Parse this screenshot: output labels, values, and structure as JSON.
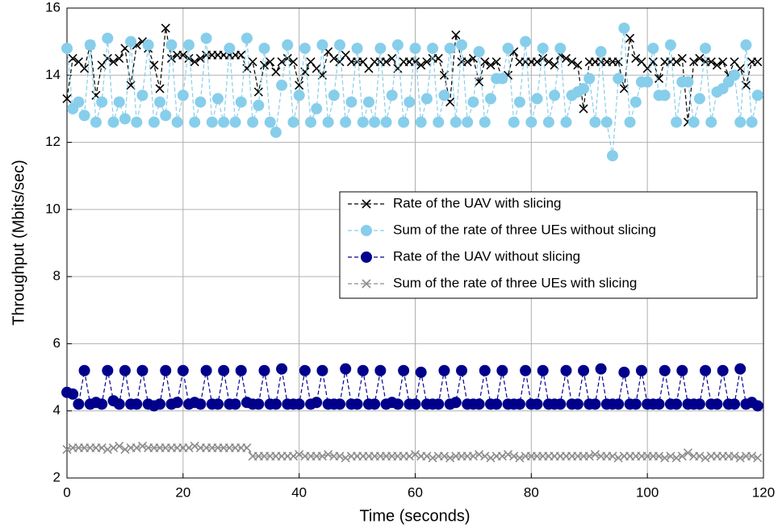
{
  "chart_data": {
    "type": "line",
    "x_label": "Time (seconds)",
    "y_label": "Throughput (Mbits/sec)",
    "x": [
      0,
      1,
      2,
      3,
      4,
      5,
      6,
      7,
      8,
      9,
      10,
      11,
      12,
      13,
      14,
      15,
      16,
      17,
      18,
      19,
      20,
      21,
      22,
      23,
      24,
      25,
      26,
      27,
      28,
      29,
      30,
      31,
      32,
      33,
      34,
      35,
      36,
      37,
      38,
      39,
      40,
      41,
      42,
      43,
      44,
      45,
      46,
      47,
      48,
      49,
      50,
      51,
      52,
      53,
      54,
      55,
      56,
      57,
      58,
      59,
      60,
      61,
      62,
      63,
      64,
      65,
      66,
      67,
      68,
      69,
      70,
      71,
      72,
      73,
      74,
      75,
      76,
      77,
      78,
      79,
      80,
      81,
      82,
      83,
      84,
      85,
      86,
      87,
      88,
      89,
      90,
      91,
      92,
      93,
      94,
      95,
      96,
      97,
      98,
      99,
      100,
      101,
      102,
      103,
      104,
      105,
      106,
      107,
      108,
      109,
      110,
      111,
      112,
      113,
      114,
      115,
      116,
      117,
      118,
      119
    ],
    "series": [
      {
        "name": "Rate of the UAV with slicing",
        "color": "#000000",
        "marker": "x",
        "values": [
          13.3,
          14.5,
          14.4,
          14.2,
          14.9,
          13.4,
          14.3,
          14.5,
          14.4,
          14.5,
          14.8,
          13.7,
          14.9,
          15.0,
          14.8,
          14.3,
          13.6,
          15.4,
          14.5,
          14.6,
          14.6,
          14.5,
          14.4,
          14.5,
          14.6,
          14.6,
          14.6,
          14.6,
          14.6,
          14.6,
          14.6,
          14.2,
          14.4,
          13.5,
          14.3,
          14.4,
          14.1,
          14.4,
          14.5,
          14.4,
          13.7,
          14.1,
          14.4,
          14.2,
          14.0,
          14.7,
          14.5,
          14.4,
          14.6,
          14.4,
          14.4,
          14.4,
          14.2,
          14.4,
          14.4,
          14.4,
          14.5,
          14.2,
          14.4,
          14.4,
          14.4,
          14.3,
          14.4,
          14.5,
          14.5,
          14.0,
          13.2,
          15.2,
          14.4,
          14.4,
          14.5,
          13.8,
          14.4,
          14.3,
          14.4,
          13.9,
          14.0,
          14.7,
          14.4,
          14.4,
          14.4,
          14.4,
          14.5,
          14.4,
          14.3,
          14.6,
          14.5,
          14.4,
          14.3,
          13.0,
          14.4,
          14.4,
          14.4,
          14.4,
          14.4,
          14.4,
          13.6,
          15.1,
          14.5,
          14.4,
          14.2,
          14.4,
          13.9,
          14.4,
          14.4,
          14.4,
          14.5,
          12.6,
          14.4,
          14.5,
          14.4,
          14.4,
          14.3,
          14.4,
          14.0,
          14.4,
          14.2,
          13.7,
          14.4,
          14.4
        ]
      },
      {
        "name": "Sum of the rate of three UEs without slicing",
        "color": "#87ceeb",
        "marker": "o",
        "values": [
          14.8,
          13.0,
          13.2,
          12.8,
          14.9,
          12.6,
          13.2,
          15.1,
          12.6,
          13.2,
          12.7,
          15.0,
          12.6,
          13.4,
          14.9,
          12.6,
          13.2,
          12.8,
          14.9,
          12.6,
          13.4,
          14.9,
          12.6,
          13.2,
          15.1,
          12.6,
          13.3,
          12.6,
          14.8,
          12.6,
          13.2,
          15.1,
          12.6,
          13.1,
          14.8,
          12.6,
          12.3,
          13.7,
          14.9,
          12.6,
          13.4,
          14.8,
          12.6,
          13.0,
          14.9,
          12.6,
          13.4,
          14.9,
          12.6,
          13.2,
          14.8,
          12.6,
          13.2,
          12.6,
          14.8,
          12.6,
          13.4,
          14.9,
          12.6,
          13.2,
          14.8,
          12.6,
          13.3,
          14.8,
          12.6,
          13.4,
          14.8,
          12.6,
          14.9,
          12.6,
          13.2,
          14.7,
          12.6,
          13.3,
          13.9,
          13.9,
          14.8,
          12.6,
          13.2,
          15.0,
          12.6,
          13.3,
          14.8,
          12.6,
          13.4,
          14.8,
          12.6,
          13.4,
          13.5,
          13.6,
          13.9,
          12.6,
          14.7,
          12.6,
          11.6,
          13.9,
          15.4,
          12.6,
          13.2,
          13.8,
          13.8,
          14.8,
          13.4,
          13.4,
          14.9,
          12.6,
          13.8,
          13.8,
          12.6,
          13.3,
          14.8,
          12.6,
          13.5,
          13.6,
          13.8,
          14.0,
          12.6,
          14.9,
          12.6,
          13.4
        ]
      },
      {
        "name": "Rate of the UAV without slicing",
        "color": "#00008b",
        "marker": "o",
        "values": [
          4.55,
          4.5,
          4.2,
          5.2,
          4.2,
          4.25,
          4.2,
          5.2,
          4.3,
          4.2,
          5.2,
          4.2,
          4.2,
          5.2,
          4.2,
          4.15,
          4.2,
          5.2,
          4.2,
          4.25,
          5.2,
          4.2,
          4.25,
          4.2,
          5.2,
          4.2,
          4.2,
          5.2,
          4.2,
          4.2,
          5.2,
          4.25,
          4.2,
          4.2,
          5.2,
          4.2,
          4.2,
          5.25,
          4.2,
          4.2,
          4.2,
          5.2,
          4.2,
          4.25,
          5.2,
          4.2,
          4.2,
          4.2,
          5.25,
          4.2,
          4.2,
          5.2,
          4.2,
          4.2,
          5.2,
          4.2,
          4.25,
          4.2,
          5.2,
          4.2,
          4.2,
          5.15,
          4.2,
          4.2,
          4.2,
          5.2,
          4.2,
          4.25,
          5.2,
          4.2,
          4.2,
          4.2,
          5.2,
          4.2,
          4.2,
          5.2,
          4.2,
          4.2,
          4.2,
          5.2,
          4.2,
          4.2,
          5.2,
          4.2,
          4.2,
          4.2,
          5.2,
          4.2,
          4.2,
          5.2,
          4.2,
          4.2,
          5.25,
          4.2,
          4.2,
          4.2,
          5.15,
          4.2,
          4.2,
          5.2,
          4.2,
          4.2,
          4.2,
          5.2,
          4.2,
          4.2,
          5.2,
          4.2,
          4.2,
          4.2,
          5.2,
          4.2,
          4.2,
          5.2,
          4.2,
          4.2,
          5.25,
          4.2,
          4.25,
          4.15
        ]
      },
      {
        "name": "Sum of the rate of three UEs with slicing",
        "color": "#8c8c8c",
        "marker": "x",
        "values": [
          2.85,
          2.9,
          2.9,
          2.9,
          2.9,
          2.9,
          2.9,
          2.85,
          2.9,
          2.95,
          2.85,
          2.9,
          2.9,
          2.95,
          2.9,
          2.9,
          2.9,
          2.9,
          2.9,
          2.9,
          2.9,
          2.9,
          2.95,
          2.9,
          2.9,
          2.9,
          2.9,
          2.9,
          2.9,
          2.9,
          2.9,
          2.9,
          2.65,
          2.65,
          2.65,
          2.65,
          2.65,
          2.65,
          2.65,
          2.65,
          2.7,
          2.65,
          2.65,
          2.65,
          2.65,
          2.7,
          2.65,
          2.65,
          2.6,
          2.65,
          2.65,
          2.65,
          2.65,
          2.65,
          2.65,
          2.65,
          2.65,
          2.65,
          2.65,
          2.65,
          2.7,
          2.65,
          2.65,
          2.6,
          2.65,
          2.65,
          2.6,
          2.65,
          2.65,
          2.65,
          2.65,
          2.7,
          2.65,
          2.6,
          2.65,
          2.65,
          2.7,
          2.65,
          2.6,
          2.65,
          2.65,
          2.65,
          2.65,
          2.65,
          2.65,
          2.65,
          2.65,
          2.65,
          2.65,
          2.65,
          2.65,
          2.7,
          2.65,
          2.65,
          2.65,
          2.6,
          2.65,
          2.65,
          2.65,
          2.65,
          2.65,
          2.65,
          2.65,
          2.6,
          2.65,
          2.6,
          2.65,
          2.75,
          2.65,
          2.65,
          2.6,
          2.65,
          2.65,
          2.65,
          2.65,
          2.65,
          2.6,
          2.65,
          2.65,
          2.6
        ]
      }
    ],
    "xlim": [
      0,
      120
    ],
    "xticks": [
      0,
      20,
      40,
      60,
      80,
      100,
      120
    ],
    "ylim": [
      2,
      16
    ],
    "yticks": [
      2,
      4,
      6,
      8,
      10,
      12,
      14,
      16
    ],
    "grid": true,
    "line_style": "dashed",
    "legend_position": "right"
  }
}
